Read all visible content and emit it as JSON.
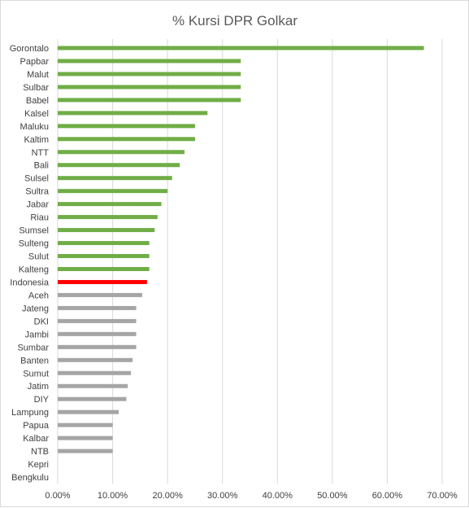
{
  "chart_data": {
    "type": "bar",
    "orientation": "horizontal",
    "title": "% Kursi DPR Golkar",
    "categories": [
      "Gorontalo",
      "Papbar",
      "Malut",
      "Sulbar",
      "Babel",
      "Kalsel",
      "Maluku",
      "Kaltim",
      "NTT",
      "Bali",
      "Sulsel",
      "Sultra",
      "Jabar",
      "Riau",
      "Sumsel",
      "Sulteng",
      "Sulut",
      "Kalteng",
      "Indonesia",
      "Aceh",
      "Jateng",
      "DKI",
      "Jambi",
      "Sumbar",
      "Banten",
      "Sumut",
      "Jatim",
      "DIY",
      "Lampung",
      "Papua",
      "Kalbar",
      "NTB",
      "Kepri",
      "Bengkulu"
    ],
    "values": [
      0.6667,
      0.3333,
      0.3333,
      0.3333,
      0.3333,
      0.2727,
      0.25,
      0.25,
      0.2308,
      0.2222,
      0.2083,
      0.2,
      0.1887,
      0.1818,
      0.1765,
      0.1667,
      0.1667,
      0.1667,
      0.1625,
      0.1538,
      0.1429,
      0.1429,
      0.1429,
      0.1429,
      0.1364,
      0.1333,
      0.1275,
      0.125,
      0.1111,
      0.1,
      0.1,
      0.1,
      0.0,
      0.0
    ],
    "colors": {
      "above": "#70ad47",
      "highlight": "#ff0000",
      "below": "#a5a5a5"
    },
    "highlight_category": "Indonesia",
    "xlim": [
      0,
      0.7
    ],
    "x_ticks": [
      "0.00%",
      "10.00%",
      "20.00%",
      "30.00%",
      "40.00%",
      "50.00%",
      "60.00%",
      "70.00%"
    ],
    "grid": true,
    "legend": "none"
  }
}
